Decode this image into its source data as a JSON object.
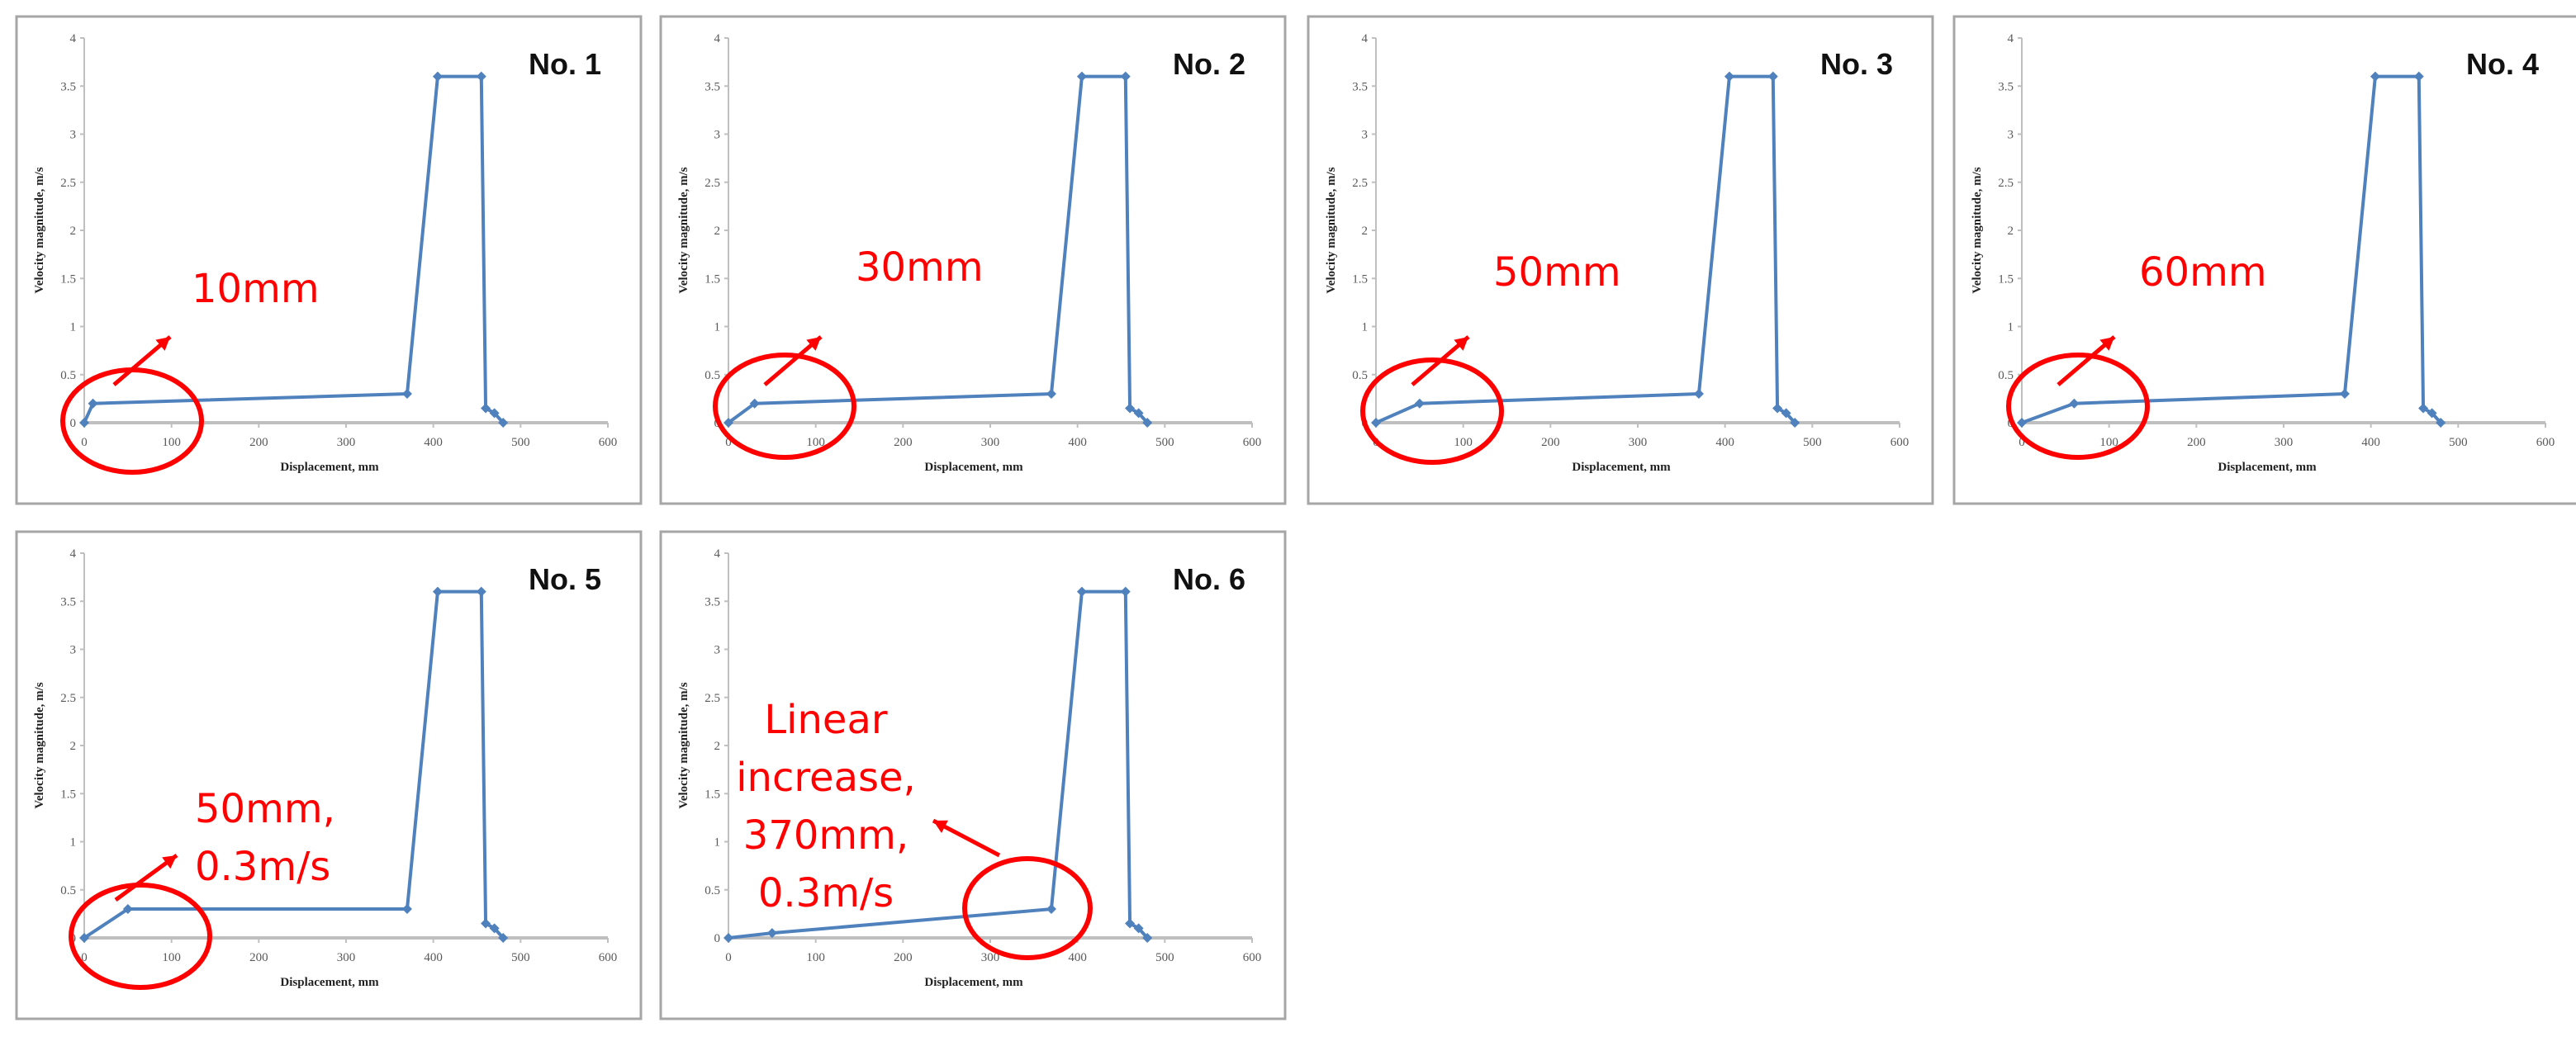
{
  "colors": {
    "series": "#4f81bd",
    "annotation": "#ff0000",
    "axis": "#bfbfbf",
    "frame": "#a6a6a6"
  },
  "chart_data": [
    {
      "type": "line",
      "title": "No. 1",
      "xlabel": "Displacement, mm",
      "ylabel": "Velocity magnitude, m/s",
      "xlim": [
        0,
        600
      ],
      "ylim": [
        0,
        4
      ],
      "xticks": [
        0,
        100,
        200,
        300,
        400,
        500,
        600
      ],
      "yticks": [
        0,
        0.5,
        1,
        1.5,
        2,
        2.5,
        3,
        3.5,
        4
      ],
      "grid": false,
      "x": [
        0,
        10,
        370,
        405,
        455,
        460,
        470,
        480
      ],
      "y": [
        0,
        0.2,
        0.3,
        3.6,
        3.6,
        0.15,
        0.1,
        0
      ],
      "annotation": [
        "10mm"
      ]
    },
    {
      "type": "line",
      "title": "No. 2",
      "xlabel": "Displacement, mm",
      "ylabel": "Velocity magnitude, m/s",
      "xlim": [
        0,
        600
      ],
      "ylim": [
        0,
        4
      ],
      "xticks": [
        0,
        100,
        200,
        300,
        400,
        500,
        600
      ],
      "yticks": [
        0,
        0.5,
        1,
        1.5,
        2,
        2.5,
        3,
        3.5,
        4
      ],
      "grid": false,
      "x": [
        0,
        30,
        370,
        405,
        455,
        460,
        470,
        480
      ],
      "y": [
        0,
        0.2,
        0.3,
        3.6,
        3.6,
        0.15,
        0.1,
        0
      ],
      "annotation": [
        "30mm"
      ]
    },
    {
      "type": "line",
      "title": "No. 3",
      "xlabel": "Displacement, mm",
      "ylabel": "Velocity magnitude, m/s",
      "xlim": [
        0,
        600
      ],
      "ylim": [
        0,
        4
      ],
      "xticks": [
        0,
        100,
        200,
        300,
        400,
        500,
        600
      ],
      "yticks": [
        0,
        0.5,
        1,
        1.5,
        2,
        2.5,
        3,
        3.5,
        4
      ],
      "grid": false,
      "x": [
        0,
        50,
        370,
        405,
        455,
        460,
        470,
        480
      ],
      "y": [
        0,
        0.2,
        0.3,
        3.6,
        3.6,
        0.15,
        0.1,
        0
      ],
      "annotation": [
        "50mm"
      ]
    },
    {
      "type": "line",
      "title": "No. 4",
      "xlabel": "Displacement, mm",
      "ylabel": "Velocity magnitude, m/s",
      "xlim": [
        0,
        600
      ],
      "ylim": [
        0,
        4
      ],
      "xticks": [
        0,
        100,
        200,
        300,
        400,
        500,
        600
      ],
      "yticks": [
        0,
        0.5,
        1,
        1.5,
        2,
        2.5,
        3,
        3.5,
        4
      ],
      "grid": false,
      "x": [
        0,
        60,
        370,
        405,
        455,
        460,
        470,
        480
      ],
      "y": [
        0,
        0.2,
        0.3,
        3.6,
        3.6,
        0.15,
        0.1,
        0
      ],
      "annotation": [
        "60mm"
      ]
    },
    {
      "type": "line",
      "title": "No. 5",
      "xlabel": "Displacement, mm",
      "ylabel": "Velocity magnitude, m/s",
      "xlim": [
        0,
        600
      ],
      "ylim": [
        0,
        4
      ],
      "xticks": [
        0,
        100,
        200,
        300,
        400,
        500,
        600
      ],
      "yticks": [
        0,
        0.5,
        1,
        1.5,
        2,
        2.5,
        3,
        3.5,
        4
      ],
      "grid": false,
      "x": [
        0,
        50,
        370,
        405,
        455,
        460,
        470,
        480
      ],
      "y": [
        0,
        0.3,
        0.3,
        3.6,
        3.6,
        0.15,
        0.1,
        0
      ],
      "annotation": [
        "50mm,",
        "0.3m/s"
      ]
    },
    {
      "type": "line",
      "title": "No. 6",
      "xlabel": "Displacement, mm",
      "ylabel": "Velocity magnitude, m/s",
      "xlim": [
        0,
        600
      ],
      "ylim": [
        0,
        4
      ],
      "xticks": [
        0,
        100,
        200,
        300,
        400,
        500,
        600
      ],
      "yticks": [
        0,
        0.5,
        1,
        1.5,
        2,
        2.5,
        3,
        3.5,
        4
      ],
      "grid": false,
      "x": [
        0,
        50,
        370,
        405,
        455,
        460,
        470,
        480
      ],
      "y": [
        0,
        0.05,
        0.3,
        3.6,
        3.6,
        0.15,
        0.1,
        0
      ],
      "annotation": [
        "Linear",
        "increase,",
        "370mm,",
        "0.3m/s"
      ]
    }
  ]
}
